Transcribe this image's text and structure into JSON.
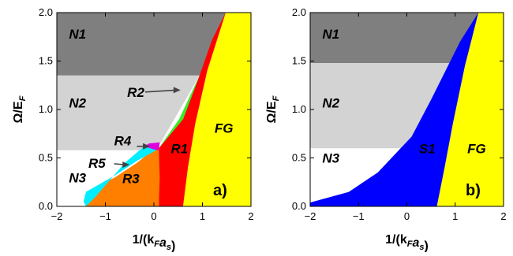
{
  "chart_data": [
    {
      "type": "area",
      "panel_label": "a)",
      "xlabel": "1/(k_F a_s)",
      "ylabel": "Ω/E_F",
      "xlim": [
        -2,
        2
      ],
      "ylim": [
        0,
        2
      ],
      "xticks": [
        "-2",
        "-1",
        "0",
        "1",
        "2"
      ],
      "yticks": [
        "0.0",
        "0.5",
        "1.0",
        "1.5",
        "2.0"
      ],
      "colors": {
        "N1": "#7f7f7f",
        "N2": "#d3d3d3",
        "N3": "#ffffff",
        "R1": "#ff0000",
        "R2": "#33ee22",
        "R3": "#ff7f00",
        "R4": "#dd00dd",
        "R5": "#00eeff",
        "FG": "#ffff00"
      },
      "regions": [
        {
          "name": "N1",
          "polygon": [
            [
              -2,
              2
            ],
            [
              1.48,
              2
            ],
            [
              0.94,
              1.35
            ],
            [
              -2,
              1.35
            ]
          ]
        },
        {
          "name": "N2",
          "polygon": [
            [
              -2,
              1.35
            ],
            [
              0.94,
              1.35
            ],
            [
              0.05,
              0.58
            ],
            [
              -2,
              0.58
            ]
          ]
        },
        {
          "name": "FG",
          "polygon": [
            [
              2,
              2
            ],
            [
              1.48,
              2
            ],
            [
              1.1,
              1.4
            ],
            [
              0.85,
              0.85
            ],
            [
              0.7,
              0.4
            ],
            [
              0.6,
              0
            ],
            [
              2,
              0
            ]
          ]
        },
        {
          "name": "R1",
          "polygon": [
            [
              1.48,
              2
            ],
            [
              1.2,
              1.72
            ],
            [
              0.94,
              1.35
            ],
            [
              0.6,
              0.9
            ],
            [
              0.1,
              0.6
            ],
            [
              0.1,
              0
            ],
            [
              0.6,
              0
            ],
            [
              0.7,
              0.4
            ],
            [
              0.85,
              0.85
            ],
            [
              1.1,
              1.4
            ]
          ]
        },
        {
          "name": "R2",
          "polygon": [
            [
              0.94,
              1.35
            ],
            [
              0.52,
              0.9
            ],
            [
              0.1,
              0.6
            ],
            [
              0.6,
              0.9
            ]
          ]
        },
        {
          "name": "R3",
          "polygon": [
            [
              0.1,
              0.6
            ],
            [
              0.12,
              0.3
            ],
            [
              0.1,
              0
            ],
            [
              -1.4,
              0
            ],
            [
              -1.4,
              0.15
            ],
            [
              -0.8,
              0.3
            ],
            [
              -0.35,
              0.45
            ],
            [
              -0.05,
              0.57
            ]
          ]
        },
        {
          "name": "R4",
          "polygon": [
            [
              -0.25,
              0.6
            ],
            [
              0.1,
              0.58
            ],
            [
              0.12,
              0.66
            ],
            [
              -0.1,
              0.65
            ]
          ]
        },
        {
          "name": "R5",
          "polygon": [
            [
              0.05,
              0.58
            ],
            [
              -0.35,
              0.47
            ],
            [
              -0.8,
              0.32
            ],
            [
              -1.4,
              0.15
            ],
            [
              -1.45,
              0.05
            ],
            [
              -1.4,
              0
            ],
            [
              -1.2,
              0.1
            ],
            [
              -0.6,
              0.45
            ],
            [
              -0.2,
              0.62
            ]
          ]
        }
      ],
      "region_labels": [
        {
          "text": "N1",
          "x": -1.75,
          "y": 1.73
        },
        {
          "text": "N2",
          "x": -1.75,
          "y": 1.02
        },
        {
          "text": "N3",
          "x": -1.75,
          "y": 0.25
        },
        {
          "text": "R1",
          "x": 0.35,
          "y": 0.55
        },
        {
          "text": "R2",
          "x": -0.55,
          "y": 1.13
        },
        {
          "text": "R3",
          "x": -0.65,
          "y": 0.24
        },
        {
          "text": "R4",
          "x": -0.82,
          "y": 0.63
        },
        {
          "text": "R5",
          "x": -1.35,
          "y": 0.4
        },
        {
          "text": "FG",
          "x": 1.25,
          "y": 0.76
        }
      ],
      "arrows": [
        {
          "from": [
            -0.18,
            1.18
          ],
          "to": [
            0.55,
            1.2
          ]
        },
        {
          "from": [
            -0.35,
            0.62
          ],
          "to": [
            -0.08,
            0.62
          ]
        },
        {
          "from": [
            -0.82,
            0.44
          ],
          "to": [
            -0.5,
            0.43
          ]
        }
      ]
    },
    {
      "type": "area",
      "panel_label": "b)",
      "xlabel": "1/(k_F a_s)",
      "ylabel": "Ω/E_F",
      "xlim": [
        -2,
        2
      ],
      "ylim": [
        0,
        2
      ],
      "xticks": [
        "-2",
        "-1",
        "0",
        "1",
        "2"
      ],
      "yticks": [
        "0.0",
        "0.5",
        "1.0",
        "1.5",
        "2.0"
      ],
      "colors": {
        "N1": "#7f7f7f",
        "N2": "#d3d3d3",
        "N3": "#ffffff",
        "S1": "#0000ff",
        "FG": "#ffff00"
      },
      "regions": [
        {
          "name": "N1",
          "polygon": [
            [
              -2,
              2
            ],
            [
              2,
              2
            ],
            [
              2,
              1.48
            ],
            [
              -2,
              1.48
            ]
          ]
        },
        {
          "name": "N2",
          "polygon": [
            [
              -2,
              1.48
            ],
            [
              2,
              1.48
            ],
            [
              2,
              0.6
            ],
            [
              -2,
              0.6
            ]
          ]
        },
        {
          "name": "FG",
          "polygon": [
            [
              2,
              2
            ],
            [
              1.48,
              2
            ],
            [
              1.2,
              1.45
            ],
            [
              0.95,
              0.85
            ],
            [
              0.78,
              0.4
            ],
            [
              0.62,
              0
            ],
            [
              2,
              0
            ]
          ]
        },
        {
          "name": "S1",
          "polygon": [
            [
              1.48,
              2
            ],
            [
              1.1,
              1.7
            ],
            [
              0.5,
              1.1
            ],
            [
              0.1,
              0.72
            ],
            [
              -0.6,
              0.35
            ],
            [
              -1.2,
              0.15
            ],
            [
              -2,
              0.04
            ],
            [
              -2,
              0
            ],
            [
              0.62,
              0
            ],
            [
              0.78,
              0.4
            ],
            [
              0.95,
              0.85
            ],
            [
              1.2,
              1.45
            ]
          ]
        }
      ],
      "region_labels": [
        {
          "text": "N1",
          "x": -1.75,
          "y": 1.73
        },
        {
          "text": "N2",
          "x": -1.75,
          "y": 1.02
        },
        {
          "text": "N3",
          "x": -1.75,
          "y": 0.45
        },
        {
          "text": "S1",
          "x": 0.25,
          "y": 0.55
        },
        {
          "text": "FG",
          "x": 1.25,
          "y": 0.55
        }
      ],
      "arrows": []
    }
  ],
  "axis_labels": {
    "x_main": "1/(k",
    "x_sub1": "F",
    "x_mid": "a",
    "x_sub2": "s",
    "x_end": ")",
    "y_main": "Ω/E",
    "y_sub": "F"
  }
}
